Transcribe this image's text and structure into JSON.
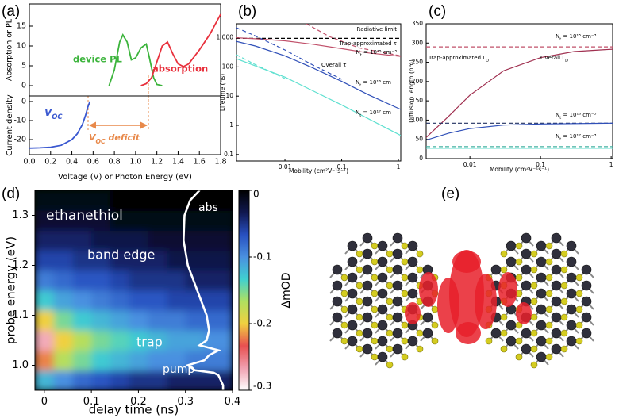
{
  "chart_data": [
    {
      "type": "line",
      "panel_label": "(a)",
      "ylabel": "Absorption or PL",
      "xlim": [
        0,
        1.8
      ],
      "ylim": [
        -2.6,
        20.6
      ],
      "yticks": [
        0,
        5,
        10,
        15
      ],
      "series": [
        {
          "name": "device PL",
          "color": "#3cb43c",
          "x": [
            0.75,
            0.8,
            0.85,
            0.88,
            0.92,
            0.96,
            1.0,
            1.05,
            1.1,
            1.13,
            1.17,
            1.2,
            1.25
          ],
          "values": [
            0,
            4,
            11,
            12.8,
            11,
            6.5,
            7,
            9.5,
            10.5,
            7,
            2,
            0.3,
            0
          ]
        },
        {
          "name": "absorption",
          "color": "#e8303c",
          "x": [
            1.05,
            1.1,
            1.15,
            1.2,
            1.25,
            1.3,
            1.35,
            1.4,
            1.45,
            1.5,
            1.6,
            1.7,
            1.8
          ],
          "values": [
            0,
            0.5,
            2,
            6,
            10,
            11,
            8,
            5.5,
            4.8,
            5.5,
            9,
            13,
            18
          ]
        }
      ]
    },
    {
      "type": "line",
      "ylabel": "Current density",
      "xlabel": "Voltage (V)  or  Photon Energy (eV)",
      "xlim": [
        0,
        1.8
      ],
      "xticks": [
        {
          "value": 0,
          "label": "0.0"
        },
        0.2,
        0.4,
        0.6,
        0.8,
        {
          "value": 1,
          "label": "1.0"
        },
        1.2,
        1.4,
        1.6,
        1.8
      ],
      "ylim": [
        -27.9,
        2.9
      ],
      "yticks": [
        0,
        -10,
        -20
      ],
      "series": [
        {
          "color": "#3a58d0",
          "x": [
            0,
            0.1,
            0.2,
            0.3,
            0.4,
            0.45,
            0.5,
            0.53,
            0.55,
            0.57
          ],
          "values": [
            -24.5,
            -24.3,
            -24,
            -23,
            -20,
            -17,
            -12,
            -7,
            -3,
            0
          ]
        }
      ],
      "annotations": [
        {
          "text": "V",
          "sub": "OC"
        },
        {
          "text": "V",
          "sub": "OC",
          "after": " deficit"
        }
      ]
    },
    {
      "type": "line",
      "panel_label": "(b)",
      "ylabel": "Lifetime (ns)",
      "xlabel": "Mobility (cm²V⁻¹s⁻¹)",
      "xscale": "log",
      "yscale": "log",
      "xlim": [
        0.0014,
        1.1
      ],
      "ylim": [
        0.06,
        3000
      ],
      "xticks": [
        0.01,
        0.1,
        1
      ],
      "yticks": [
        0.1,
        1,
        10,
        100,
        {
          "value": 1000,
          "label": "1,000"
        }
      ],
      "series": [
        {
          "color": "#000000",
          "dash": true,
          "x": [
            0.0014,
            1.1
          ],
          "values": [
            950,
            950
          ]
        },
        {
          "color": "#c0506a",
          "x": [
            0.0014,
            0.003,
            0.01,
            0.03,
            0.1,
            0.3,
            1.1
          ],
          "values": [
            1000,
            920,
            780,
            600,
            420,
            300,
            230
          ]
        },
        {
          "color": "#c0506a",
          "dash": true,
          "x": [
            0.024,
            0.06,
            0.2,
            1.1
          ],
          "values": [
            3000,
            1100,
            450,
            240
          ]
        },
        {
          "color": "#3050b8",
          "x": [
            0.0014,
            0.003,
            0.01,
            0.03,
            0.1,
            0.3,
            1.1
          ],
          "values": [
            750,
            520,
            240,
            95,
            32,
            11,
            3.5
          ]
        },
        {
          "color": "#3050b8",
          "dash": true,
          "x": [
            0.0014,
            0.003,
            0.01,
            0.03,
            0.1
          ],
          "values": [
            2200,
            1150,
            380,
            120,
            38
          ]
        },
        {
          "color": "#5fe0d0",
          "x": [
            0.0014,
            0.01,
            0.1,
            1.1
          ],
          "values": [
            190,
            45,
            5,
            0.45
          ]
        },
        {
          "color": "#5fe0d0",
          "dash": true,
          "x": [
            0.0014,
            0.003,
            0.01
          ],
          "values": [
            260,
            120,
            40
          ]
        }
      ],
      "annotations": [
        "Radiative limit",
        "Trap-approximated τ",
        {
          "text": "N",
          "sub": "t",
          "after": " = 10¹⁵ cm⁻³"
        },
        "Overall τ",
        {
          "text": "N",
          "sub": "t",
          "after": " = 10¹⁶ cm"
        },
        {
          "text": "N",
          "sub": "t",
          "after": " = 10¹⁷ cm"
        }
      ]
    },
    {
      "type": "line",
      "panel_label": "(c)",
      "ylabel": "Diffusion length (nm)",
      "xlabel": "Mobility (cm²V⁻¹s⁻¹)",
      "xscale": "log",
      "xlim": [
        0.0024,
        1.05
      ],
      "ylim": [
        0,
        350
      ],
      "xticks": [
        0.01,
        0.1,
        1
      ],
      "yticks": [
        0,
        50,
        100,
        150,
        200,
        250,
        300,
        350
      ],
      "series": [
        {
          "color": "#c0506a",
          "dash": true,
          "x": [
            0.0024,
            1.05
          ],
          "values": [
            290,
            290
          ]
        },
        {
          "color": "#a03050",
          "x": [
            0.0024,
            0.005,
            0.01,
            0.03,
            0.1,
            0.3,
            1.05
          ],
          "values": [
            55,
            110,
            165,
            228,
            262,
            278,
            284
          ]
        },
        {
          "color": "#203060",
          "dash": true,
          "x": [
            0.0024,
            1.05
          ],
          "values": [
            92,
            92
          ]
        },
        {
          "color": "#3050b8",
          "x": [
            0.0024,
            0.005,
            0.01,
            0.03,
            0.1,
            1.05
          ],
          "values": [
            48,
            66,
            78,
            87,
            90,
            92
          ]
        },
        {
          "color": "#40b0a0",
          "dash": true,
          "x": [
            0.0024,
            1.05
          ],
          "values": [
            31,
            31
          ]
        },
        {
          "color": "#5fe0d0",
          "x": [
            0.0024,
            1.05
          ],
          "values": [
            27,
            27
          ]
        }
      ],
      "annotations": [
        {
          "text": "N",
          "sub": "t",
          "after": " = 10¹⁵ cm⁻³"
        },
        {
          "text": "Trap-approximated L",
          "sub": "D"
        },
        {
          "text": "Overall L",
          "sub": "D"
        },
        {
          "text": "N",
          "sub": "t",
          "after": " = 10¹⁶ cm⁻³"
        },
        {
          "text": "N",
          "sub": "t",
          "after": " = 10¹⁷ cm⁻³"
        }
      ]
    },
    {
      "type": "heatmap",
      "panel_label": "(d)",
      "ylabel": "probe energy (eV)",
      "xlabel": "delay time (ns)",
      "xlim": [
        -0.02,
        0.4
      ],
      "ylim": [
        0.95,
        1.35
      ],
      "xticks": [
        0,
        0.1,
        0.2,
        0.3,
        0.4
      ],
      "yticks": [
        {
          "value": 1,
          "label": "1.0"
        },
        1.1,
        1.2,
        1.3
      ],
      "x": [
        -0.02,
        0.02,
        0.06,
        0.1,
        0.14,
        0.18,
        0.22,
        0.26,
        0.3,
        0.34,
        0.4
      ],
      "y": [
        0.95,
        0.99,
        1.03,
        1.07,
        1.11,
        1.15,
        1.19,
        1.23,
        1.27,
        1.31,
        1.35
      ],
      "z": [
        [
          -0.12,
          -0.1,
          -0.08,
          -0.07,
          -0.06,
          -0.05,
          -0.05,
          -0.04,
          -0.04,
          -0.04
        ],
        [
          -0.22,
          -0.17,
          -0.15,
          -0.13,
          -0.12,
          -0.11,
          -0.1,
          -0.1,
          -0.09,
          -0.09
        ],
        [
          -0.27,
          -0.2,
          -0.17,
          -0.15,
          -0.14,
          -0.13,
          -0.12,
          -0.11,
          -0.11,
          -0.1
        ],
        [
          -0.2,
          -0.15,
          -0.13,
          -0.12,
          -0.11,
          -0.1,
          -0.09,
          -0.09,
          -0.08,
          -0.08
        ],
        [
          -0.13,
          -0.11,
          -0.1,
          -0.09,
          -0.08,
          -0.07,
          -0.07,
          -0.06,
          -0.06,
          -0.06
        ],
        [
          -0.09,
          -0.08,
          -0.07,
          -0.07,
          -0.06,
          -0.05,
          -0.05,
          -0.05,
          -0.04,
          -0.04
        ],
        [
          -0.06,
          -0.06,
          -0.05,
          -0.05,
          -0.04,
          -0.04,
          -0.04,
          -0.03,
          -0.03,
          -0.03
        ],
        [
          -0.04,
          -0.04,
          -0.04,
          -0.03,
          -0.03,
          -0.03,
          -0.02,
          -0.02,
          -0.02,
          -0.02
        ],
        [
          -0.02,
          -0.02,
          -0.02,
          -0.02,
          -0.01,
          -0.01,
          -0.01,
          -0.01,
          -0.01,
          -0.01
        ],
        [
          -0.01,
          -0.01,
          -0.01,
          -0.01,
          0,
          0,
          0,
          0,
          0,
          0
        ]
      ],
      "zlim": [
        -0.3,
        0
      ],
      "zticks": [
        0,
        -0.1,
        -0.2,
        -0.3
      ],
      "zlabel": "ΔmOD",
      "colors": [
        "#000000",
        "#101850",
        "#2850c0",
        "#4a90e0",
        "#40d0d0",
        "#b0e060",
        "#f0d040",
        "#e85050",
        "#f0a0b0",
        "#ffffff"
      ],
      "series": [
        {
          "name": "abs",
          "color": "#ffffff",
          "x": [
            0.33,
            0.31,
            0.298,
            0.296,
            0.305,
            0.325,
            0.345,
            0.35,
            0.345,
            0.33,
            0.37,
            0.35,
            0.34,
            0.305,
            0.32,
            0.36,
            0.37,
            0.375,
            0.38,
            0.38
          ],
          "values": [
            1.35,
            1.33,
            1.3,
            1.25,
            1.2,
            1.15,
            1.1,
            1.07,
            1.05,
            1.04,
            1.03,
            1.02,
            1.01,
            1.0,
            0.99,
            0.985,
            0.98,
            0.97,
            0.96,
            0.95
          ]
        }
      ],
      "annotations": [
        "ethanethiol",
        "band edge",
        "trap",
        "pump"
      ]
    },
    {
      "type": "image",
      "panel_label": "(e)"
    }
  ]
}
